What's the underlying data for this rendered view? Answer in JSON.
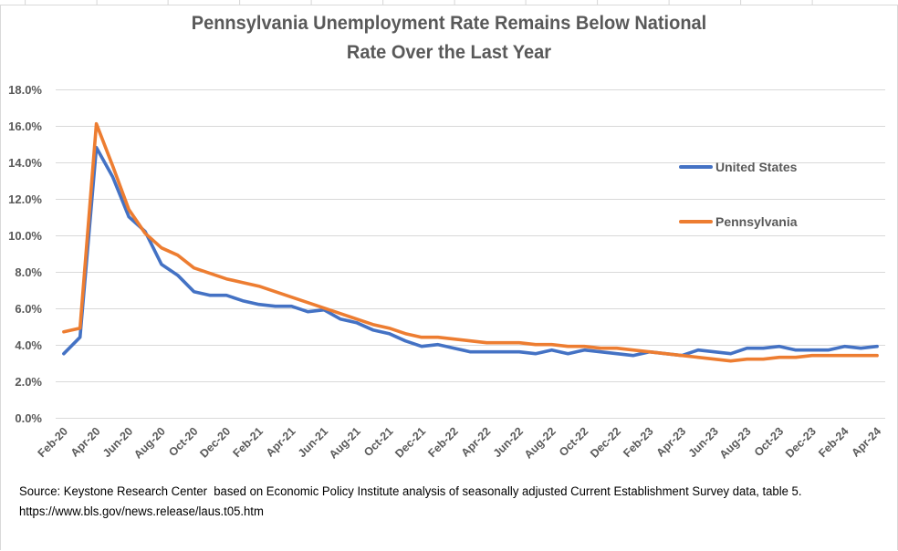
{
  "colors": {
    "us_line": "#4472C4",
    "pa_line": "#ED7D31",
    "axis_text": "#595959",
    "gridline": "#D9D9D9",
    "title_text": "#595959",
    "source_text": "#000000",
    "background": "#FFFFFF"
  },
  "title": {
    "line1": "Pennsylvania Unemployment Rate Remains Below National",
    "line2": "Rate Over the Last Year"
  },
  "source": {
    "text": "Source: Keystone Research Center  based on Economic Policy Institute analysis of seasonally adjusted Current Establishment Survey data, table 5. https://www.bls.gov/news.release/laus.t05.htm",
    "line1": "Source: Keystone Research Center  based on Economic Policy Institute analysis of seasonally adjusted Current Establishment Survey data,",
    "line2": "table 5. https://www.bls.gov/news.release/laus.t05.htm"
  },
  "chart_data": {
    "type": "line",
    "title": "Pennsylvania Unemployment Rate Remains Below National Rate Over the Last Year",
    "xlabel": "",
    "ylabel": "",
    "ylim": [
      0,
      18
    ],
    "y_tick_step": 2,
    "y_tick_labels": [
      "0.0%",
      "2.0%",
      "4.0%",
      "6.0%",
      "8.0%",
      "10.0%",
      "12.0%",
      "14.0%",
      "16.0%",
      "18.0%"
    ],
    "grid": "horizontal",
    "legend_position": "floating-right",
    "categories": [
      "Feb-20",
      "Mar-20",
      "Apr-20",
      "May-20",
      "Jun-20",
      "Jul-20",
      "Aug-20",
      "Sep-20",
      "Oct-20",
      "Nov-20",
      "Dec-20",
      "Jan-21",
      "Feb-21",
      "Mar-21",
      "Apr-21",
      "May-21",
      "Jun-21",
      "Jul-21",
      "Aug-21",
      "Sep-21",
      "Oct-21",
      "Nov-21",
      "Dec-21",
      "Jan-22",
      "Feb-22",
      "Mar-22",
      "Apr-22",
      "May-22",
      "Jun-22",
      "Jul-22",
      "Aug-22",
      "Sep-22",
      "Oct-22",
      "Nov-22",
      "Dec-22",
      "Jan-23",
      "Feb-23",
      "Mar-23",
      "Apr-23",
      "May-23",
      "Jun-23",
      "Jul-23",
      "Aug-23",
      "Sep-23",
      "Oct-23",
      "Nov-23",
      "Dec-23",
      "Jan-24",
      "Feb-24",
      "Mar-24",
      "Apr-24"
    ],
    "x_tick_labels": [
      "Feb-20",
      "Apr-20",
      "Jun-20",
      "Aug-20",
      "Oct-20",
      "Dec-20",
      "Feb-21",
      "Apr-21",
      "Jun-21",
      "Aug-21",
      "Oct-21",
      "Dec-21",
      "Feb-22",
      "Apr-22",
      "Jun-22",
      "Aug-22",
      "Oct-22",
      "Dec-22",
      "Feb-23",
      "Apr-23",
      "Jun-23",
      "Aug-23",
      "Oct-23",
      "Dec-23",
      "Feb-24",
      "Apr-24"
    ],
    "series": [
      {
        "name": "United States",
        "color": "#4472C4",
        "values": [
          3.5,
          4.4,
          14.8,
          13.2,
          11.0,
          10.2,
          8.4,
          7.8,
          6.9,
          6.7,
          6.7,
          6.4,
          6.2,
          6.1,
          6.1,
          5.8,
          5.9,
          5.4,
          5.2,
          4.8,
          4.6,
          4.2,
          3.9,
          4.0,
          3.8,
          3.6,
          3.6,
          3.6,
          3.6,
          3.5,
          3.7,
          3.5,
          3.7,
          3.6,
          3.5,
          3.4,
          3.6,
          3.5,
          3.4,
          3.7,
          3.6,
          3.5,
          3.8,
          3.8,
          3.9,
          3.7,
          3.7,
          3.7,
          3.9,
          3.8,
          3.9
        ]
      },
      {
        "name": "Pennsylvania",
        "color": "#ED7D31",
        "values": [
          4.7,
          4.9,
          16.1,
          13.8,
          11.4,
          10.1,
          9.3,
          8.9,
          8.2,
          7.9,
          7.6,
          7.4,
          7.2,
          6.9,
          6.6,
          6.3,
          6.0,
          5.7,
          5.4,
          5.1,
          4.9,
          4.6,
          4.4,
          4.4,
          4.3,
          4.2,
          4.1,
          4.1,
          4.1,
          4.0,
          4.0,
          3.9,
          3.9,
          3.8,
          3.8,
          3.7,
          3.6,
          3.5,
          3.4,
          3.3,
          3.2,
          3.1,
          3.2,
          3.2,
          3.3,
          3.3,
          3.4,
          3.4,
          3.4,
          3.4,
          3.4
        ]
      }
    ]
  }
}
